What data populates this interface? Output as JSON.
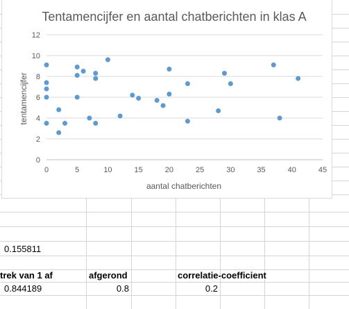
{
  "chart_data": {
    "type": "scatter",
    "title": "Tentamencijfer en aantal chatberichten in klas A",
    "xlabel": "aantal chatberichten",
    "ylabel": "tentamencijfer",
    "xlim": [
      0,
      45
    ],
    "ylim": [
      0,
      12
    ],
    "xticks": [
      "0",
      "5",
      "10",
      "15",
      "20",
      "25",
      "30",
      "35",
      "40",
      "45"
    ],
    "yticks": [
      "0",
      "2",
      "4",
      "6",
      "8",
      "10",
      "12"
    ],
    "grid": "horizontal",
    "legend": "none",
    "marker_color": "#5b9bd5",
    "points": [
      {
        "x": 0,
        "y": 9.1
      },
      {
        "x": 0,
        "y": 7.4
      },
      {
        "x": 0,
        "y": 6.8
      },
      {
        "x": 0,
        "y": 6.0
      },
      {
        "x": 0,
        "y": 3.5
      },
      {
        "x": 2,
        "y": 4.8
      },
      {
        "x": 2,
        "y": 2.6
      },
      {
        "x": 3,
        "y": 3.5
      },
      {
        "x": 5,
        "y": 8.9
      },
      {
        "x": 5,
        "y": 8.1
      },
      {
        "x": 5,
        "y": 6.0
      },
      {
        "x": 6,
        "y": 8.5
      },
      {
        "x": 7,
        "y": 4.0
      },
      {
        "x": 8,
        "y": 8.3
      },
      {
        "x": 8,
        "y": 7.8
      },
      {
        "x": 8,
        "y": 3.5
      },
      {
        "x": 10,
        "y": 9.6
      },
      {
        "x": 12,
        "y": 4.2
      },
      {
        "x": 14,
        "y": 6.2
      },
      {
        "x": 15,
        "y": 5.9
      },
      {
        "x": 18,
        "y": 5.7
      },
      {
        "x": 19,
        "y": 5.2
      },
      {
        "x": 20,
        "y": 8.7
      },
      {
        "x": 20,
        "y": 6.3
      },
      {
        "x": 23,
        "y": 7.3
      },
      {
        "x": 23,
        "y": 3.7
      },
      {
        "x": 28,
        "y": 4.7
      },
      {
        "x": 29,
        "y": 8.3
      },
      {
        "x": 30,
        "y": 7.3
      },
      {
        "x": 37,
        "y": 9.1
      },
      {
        "x": 38,
        "y": 4.0
      },
      {
        "x": 41,
        "y": 7.8
      }
    ]
  },
  "cells": {
    "value_a": "0.155811",
    "header_subtract": "trek van 1 af",
    "header_rounded": "afgerond",
    "header_correlation": "correlatie-coefficient",
    "value_subtracted": "0.844189",
    "value_rounded": "0.8",
    "value_correlation": "0.2"
  }
}
